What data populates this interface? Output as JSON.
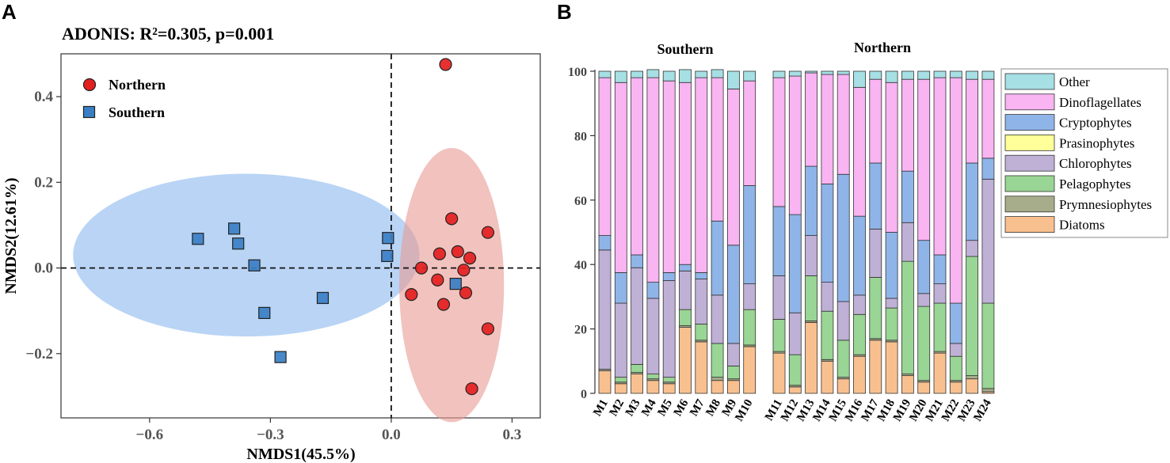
{
  "panelA": {
    "letter": "A",
    "title": "ADONIS: R²=0.305, p=0.001",
    "xlabel": "NMDS1(45.5%)",
    "ylabel": "NMDS2(12.61%)",
    "xlim": [
      -0.82,
      0.37
    ],
    "ylim": [
      -0.35,
      0.5
    ],
    "xticks": [
      -0.6,
      -0.3,
      0.0,
      0.3
    ],
    "xtick_labels": [
      "−0.6",
      "−0.3",
      "0.0",
      "0.3"
    ],
    "yticks": [
      -0.2,
      0.0,
      0.2,
      0.4
    ],
    "ytick_labels": [
      "−0.2",
      "0.0",
      "0.2",
      "0.4"
    ],
    "legend": [
      {
        "name": "Northern",
        "marker": "circle",
        "color": "#e41f1f"
      },
      {
        "name": "Southern",
        "marker": "square",
        "color": "#3a7fc4"
      }
    ],
    "ellipses": [
      {
        "group": "Southern",
        "cx": -0.36,
        "cy": 0.03,
        "rx": 0.43,
        "ry": 0.19,
        "color": "#8ab8ee"
      },
      {
        "group": "Northern",
        "cx": 0.15,
        "cy": -0.04,
        "rx": 0.13,
        "ry": 0.32,
        "color": "#e89a92"
      }
    ],
    "chart_data": {
      "type": "scatter",
      "series": [
        {
          "name": "Northern",
          "x": [
            0.135,
            0.15,
            0.24,
            0.165,
            0.12,
            0.195,
            0.075,
            0.18,
            0.115,
            0.185,
            0.05,
            0.13,
            0.24,
            0.2
          ],
          "y": [
            0.475,
            0.115,
            0.083,
            0.038,
            0.033,
            0.023,
            0.0,
            -0.005,
            -0.028,
            -0.058,
            -0.062,
            -0.085,
            -0.142,
            -0.282
          ]
        },
        {
          "name": "Southern",
          "x": [
            -0.48,
            -0.39,
            -0.38,
            -0.34,
            -0.315,
            -0.275,
            -0.17,
            -0.008,
            -0.01,
            0.16
          ],
          "y": [
            0.068,
            0.092,
            0.057,
            0.006,
            -0.105,
            -0.208,
            -0.07,
            0.07,
            0.028,
            -0.037
          ]
        }
      ]
    }
  },
  "panelB": {
    "letter": "B",
    "groups": [
      "Southern",
      "Northern"
    ],
    "yticks": [
      0,
      20,
      40,
      60,
      80,
      100
    ],
    "ytick_labels": [
      "0",
      "20",
      "40",
      "60",
      "80",
      "100"
    ],
    "ylim": [
      0,
      100
    ],
    "legend": [
      "Other",
      "Dinoflagellates",
      "Cryptophytes",
      "Prasinophytes",
      "Chlorophytes",
      "Pelagophytes",
      "Prymnesiophytes",
      "Diatoms"
    ],
    "chart_data": {
      "type": "bar",
      "stacked": true,
      "categories": [
        "M1",
        "M2",
        "M3",
        "M4",
        "M5",
        "M6",
        "M7",
        "M8",
        "M9",
        "M10",
        "M11",
        "M12",
        "M13",
        "M14",
        "M15",
        "M16",
        "M17",
        "M18",
        "M19",
        "M20",
        "M21",
        "M22",
        "M23",
        "M24"
      ],
      "series": [
        {
          "name": "Diatoms",
          "color": "#f9c08f",
          "values": [
            7,
            3,
            6,
            4,
            3,
            20.5,
            16,
            4,
            4,
            14.5,
            12.5,
            2,
            22,
            10,
            4.5,
            11.5,
            16.5,
            16,
            5.5,
            3.5,
            12.5,
            3.5,
            4.5,
            0.5
          ]
        },
        {
          "name": "Prymnesiophytes",
          "color": "#a7ad8a",
          "values": [
            0.5,
            0.5,
            0.5,
            0.5,
            0.5,
            0.5,
            0.5,
            1,
            0.5,
            0.5,
            0.5,
            0.5,
            0.5,
            0.5,
            0.5,
            0.5,
            0.5,
            0.5,
            0.5,
            0.5,
            0.5,
            0.5,
            1,
            1
          ]
        },
        {
          "name": "Pelagophytes",
          "color": "#99d594",
          "values": [
            0,
            1.5,
            2.5,
            1.5,
            1.5,
            5,
            5,
            10.5,
            4,
            11,
            10,
            9.5,
            14,
            15,
            11.5,
            12.5,
            19,
            10,
            35,
            23,
            15,
            7.5,
            37,
            26.5
          ]
        },
        {
          "name": "Chlorophytes",
          "color": "#bfb0d6",
          "values": [
            37,
            23,
            30,
            23.5,
            30,
            12,
            14,
            15,
            7,
            8,
            13.5,
            13,
            12.5,
            9,
            12,
            6,
            15,
            3,
            12,
            4,
            6,
            4,
            5,
            38.5
          ]
        },
        {
          "name": "Prasinophytes",
          "color": "#ffff99",
          "values": [
            0,
            0,
            0,
            0,
            0,
            0,
            0,
            0,
            0,
            0,
            0,
            0,
            0,
            0,
            0,
            0,
            0,
            0,
            0,
            0,
            0,
            0,
            0,
            0
          ]
        },
        {
          "name": "Cryptophytes",
          "color": "#8fb4e8",
          "values": [
            4.5,
            9.5,
            4,
            5,
            2.5,
            2,
            2,
            23,
            30.5,
            30.5,
            21.5,
            30.5,
            21.5,
            30.5,
            39.5,
            24.5,
            20.5,
            20.5,
            16,
            16.5,
            9,
            12.5,
            24,
            6.5
          ]
        },
        {
          "name": "Dinoflagellates",
          "color": "#f9b4f2",
          "values": [
            49,
            59,
            55,
            63.5,
            59.5,
            56.5,
            60.5,
            44.5,
            48.5,
            32.5,
            40,
            43,
            29,
            34,
            31,
            40,
            26,
            46.5,
            28.5,
            50,
            55,
            70,
            26,
            24.5
          ]
        },
        {
          "name": "Other",
          "color": "#a6dfe4",
          "values": [
            2,
            3.5,
            2,
            2.5,
            3,
            4,
            2,
            2.5,
            5.5,
            3,
            2,
            1.5,
            0.5,
            1,
            1,
            5,
            2.5,
            3.5,
            2.5,
            2.5,
            2,
            2,
            2.5,
            2.5
          ]
        }
      ]
    }
  }
}
